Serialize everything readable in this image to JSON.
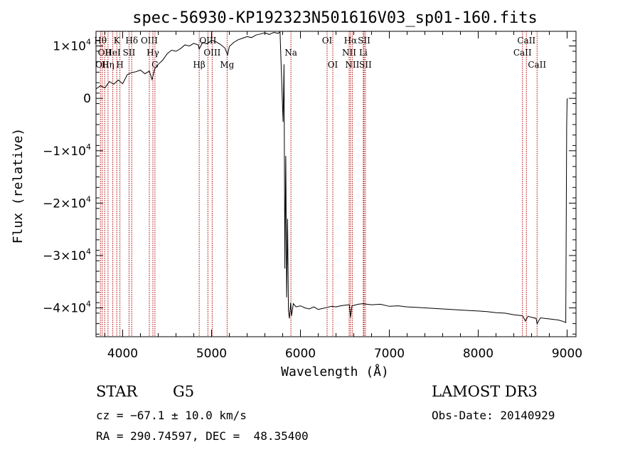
{
  "chart_data": {
    "type": "line",
    "title": "spec-56930-KP192323N501616V03_sp01-160.fits",
    "xlabel": "Wavelength (Å)",
    "ylabel": "Flux (relative)",
    "xlim": [
      3700,
      9100
    ],
    "ylim": [
      -45500,
      12800
    ],
    "x_ticks": [
      {
        "value": 4000,
        "label": "4000"
      },
      {
        "value": 5000,
        "label": "5000"
      },
      {
        "value": 6000,
        "label": "6000"
      },
      {
        "value": 7000,
        "label": "7000"
      },
      {
        "value": 8000,
        "label": "8000"
      },
      {
        "value": 9000,
        "label": "9000"
      }
    ],
    "y_ticks": [
      {
        "value": 10000,
        "label": "1×10",
        "exp": "4"
      },
      {
        "value": 0,
        "label": "0",
        "exp": ""
      },
      {
        "value": -10000,
        "label": "−1×10",
        "exp": "4"
      },
      {
        "value": -20000,
        "label": "−2×10",
        "exp": "4"
      },
      {
        "value": -30000,
        "label": "−3×10",
        "exp": "4"
      },
      {
        "value": -40000,
        "label": "−4×10",
        "exp": "4"
      }
    ],
    "series": [
      {
        "name": "flux",
        "points": [
          [
            3700,
            1800
          ],
          [
            3750,
            2400
          ],
          [
            3800,
            2000
          ],
          [
            3850,
            3200
          ],
          [
            3900,
            2700
          ],
          [
            3950,
            3500
          ],
          [
            4000,
            2800
          ],
          [
            4050,
            4500
          ],
          [
            4100,
            4900
          ],
          [
            4150,
            5100
          ],
          [
            4200,
            5400
          ],
          [
            4250,
            4700
          ],
          [
            4300,
            5200
          ],
          [
            4330,
            3600
          ],
          [
            4360,
            5600
          ],
          [
            4400,
            6500
          ],
          [
            4450,
            7300
          ],
          [
            4500,
            8500
          ],
          [
            4550,
            9200
          ],
          [
            4600,
            9000
          ],
          [
            4650,
            9500
          ],
          [
            4700,
            10200
          ],
          [
            4750,
            10000
          ],
          [
            4800,
            10500
          ],
          [
            4850,
            10200
          ],
          [
            4861,
            9400
          ],
          [
            4900,
            10700
          ],
          [
            4950,
            10400
          ],
          [
            5000,
            11100
          ],
          [
            5050,
            10800
          ],
          [
            5100,
            10300
          ],
          [
            5150,
            9600
          ],
          [
            5180,
            8300
          ],
          [
            5200,
            9900
          ],
          [
            5250,
            10700
          ],
          [
            5300,
            11200
          ],
          [
            5350,
            11500
          ],
          [
            5400,
            11800
          ],
          [
            5450,
            11600
          ],
          [
            5500,
            12100
          ],
          [
            5550,
            12300
          ],
          [
            5600,
            12500
          ],
          [
            5650,
            12200
          ],
          [
            5700,
            12600
          ],
          [
            5750,
            12400
          ],
          [
            5770,
            12700
          ],
          [
            5790,
            2500
          ],
          [
            5805,
            -4500
          ],
          [
            5815,
            6500
          ],
          [
            5825,
            -32500
          ],
          [
            5835,
            -11000
          ],
          [
            5845,
            -38000
          ],
          [
            5855,
            -23000
          ],
          [
            5865,
            -40500
          ],
          [
            5875,
            -42000
          ],
          [
            5890,
            -39000
          ],
          [
            5900,
            -41500
          ],
          [
            5920,
            -39200
          ],
          [
            5950,
            -39800
          ],
          [
            6000,
            -39600
          ],
          [
            6050,
            -40000
          ],
          [
            6100,
            -40200
          ],
          [
            6150,
            -39800
          ],
          [
            6200,
            -40300
          ],
          [
            6250,
            -40100
          ],
          [
            6300,
            -39900
          ],
          [
            6350,
            -39700
          ],
          [
            6400,
            -39800
          ],
          [
            6450,
            -39600
          ],
          [
            6500,
            -39500
          ],
          [
            6550,
            -39400
          ],
          [
            6563,
            -41800
          ],
          [
            6580,
            -39600
          ],
          [
            6650,
            -39300
          ],
          [
            6700,
            -39200
          ],
          [
            6800,
            -39400
          ],
          [
            6900,
            -39300
          ],
          [
            7000,
            -39700
          ],
          [
            7100,
            -39600
          ],
          [
            7200,
            -39800
          ],
          [
            7300,
            -39900
          ],
          [
            7400,
            -40000
          ],
          [
            7500,
            -40100
          ],
          [
            7600,
            -40200
          ],
          [
            7700,
            -40300
          ],
          [
            7800,
            -40400
          ],
          [
            7900,
            -40500
          ],
          [
            8000,
            -40600
          ],
          [
            8100,
            -40700
          ],
          [
            8200,
            -40900
          ],
          [
            8300,
            -41000
          ],
          [
            8400,
            -41300
          ],
          [
            8500,
            -41500
          ],
          [
            8530,
            -42500
          ],
          [
            8560,
            -41600
          ],
          [
            8600,
            -41800
          ],
          [
            8650,
            -42000
          ],
          [
            8662,
            -43000
          ],
          [
            8700,
            -41900
          ],
          [
            8800,
            -42100
          ],
          [
            8900,
            -42300
          ],
          [
            8960,
            -42600
          ],
          [
            8985,
            -42800
          ],
          [
            8995,
            -5000
          ],
          [
            9000,
            -200
          ],
          [
            9005,
            0
          ]
        ]
      }
    ],
    "lines": [
      {
        "wavelength": 3750,
        "label": "Hθ",
        "row": 0
      },
      {
        "wavelength": 3770,
        "label": "OII",
        "row": 2
      },
      {
        "wavelength": 3798,
        "label": "OII",
        "row": 1
      },
      {
        "wavelength": 3835,
        "label": "Hη",
        "row": 2
      },
      {
        "wavelength": 3889,
        "label": "HeI",
        "row": 1
      },
      {
        "wavelength": 3934,
        "label": "K",
        "row": 0
      },
      {
        "wavelength": 3969,
        "label": "H",
        "row": 2
      },
      {
        "wavelength": 4072,
        "label": "SII",
        "row": 1
      },
      {
        "wavelength": 4102,
        "label": "Hδ",
        "row": 0
      },
      {
        "wavelength": 4300,
        "label": "OIII",
        "row": 0
      },
      {
        "wavelength": 4340,
        "label": "Hγ",
        "row": 1
      },
      {
        "wavelength": 4363,
        "label": "G",
        "row": 2
      },
      {
        "wavelength": 4861,
        "label": "Hβ",
        "row": 2
      },
      {
        "wavelength": 4959,
        "label": "OIII",
        "row": 0
      },
      {
        "wavelength": 5007,
        "label": "OIII",
        "row": 1
      },
      {
        "wavelength": 5175,
        "label": "Mg",
        "row": 2
      },
      {
        "wavelength": 5893,
        "label": "Na",
        "row": 1
      },
      {
        "wavelength": 6300,
        "label": "OI",
        "row": 0
      },
      {
        "wavelength": 6364,
        "label": "OI",
        "row": 2
      },
      {
        "wavelength": 6548,
        "label": "NII",
        "row": 1
      },
      {
        "wavelength": 6563,
        "label": "Hα",
        "row": 0
      },
      {
        "wavelength": 6583,
        "label": "NII",
        "row": 2
      },
      {
        "wavelength": 6707,
        "label": "Li",
        "row": 1
      },
      {
        "wavelength": 6716,
        "label": "SII",
        "row": 0
      },
      {
        "wavelength": 6731,
        "label": "SII",
        "row": 2
      },
      {
        "wavelength": 8498,
        "label": "CaII",
        "row": 1
      },
      {
        "wavelength": 8542,
        "label": "CaII",
        "row": 0
      },
      {
        "wavelength": 8662,
        "label": "CaII",
        "row": 2
      }
    ],
    "colors": {
      "spectrum": "#000000",
      "line_markers": "#b00000",
      "axes": "#000000"
    }
  },
  "footer": {
    "class": "STAR",
    "subclass": "G5",
    "cz": "cz = −67.1 ± 10.0 km/s",
    "coords": "RA = 290.74597, DEC =  48.35400",
    "survey": "LAMOST DR3",
    "obs_date": "Obs-Date: 20140929"
  }
}
